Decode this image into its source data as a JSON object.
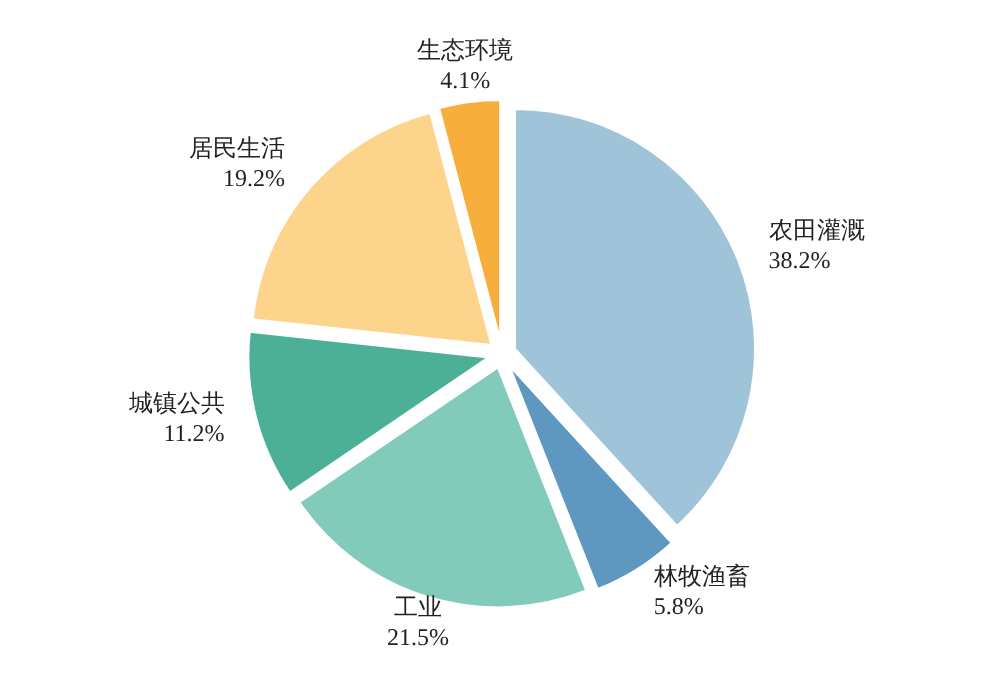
{
  "chart_data": {
    "type": "pie",
    "categories": [
      "农田灌溉",
      "林牧渔畜",
      "工业",
      "城镇公共",
      "居民生活",
      "生态环境"
    ],
    "values": [
      38.2,
      5.8,
      21.5,
      11.2,
      19.2,
      4.1
    ],
    "value_labels": [
      "38.2%",
      "5.8%",
      "21.5%",
      "11.2%",
      "19.2%",
      "4.1%"
    ],
    "colors": [
      "#9fc4d9",
      "#5e97c0",
      "#82cbba",
      "#4bb096",
      "#fdd48c",
      "#f7ae3c"
    ]
  }
}
